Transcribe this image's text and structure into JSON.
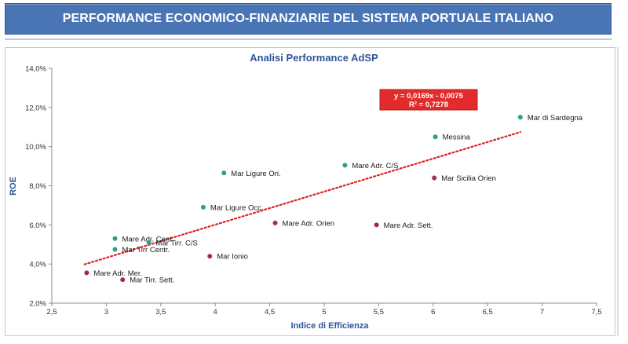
{
  "header": {
    "title": "PERFORMANCE ECONOMICO-FINANZIARIE DEL SISTEMA PORTUALE ITALIANO"
  },
  "chart_data": {
    "type": "scatter",
    "title": "Analisi Performance AdSP",
    "xlabel": "Indice di Efficienza",
    "ylabel": "ROE",
    "xlim": [
      2.5,
      7.5
    ],
    "ylim": [
      2.0,
      14.0
    ],
    "x_ticks": [
      "2,5",
      "3",
      "3,5",
      "4",
      "4,5",
      "5",
      "5,5",
      "6",
      "6,5",
      "7",
      "7,5"
    ],
    "y_ticks": [
      "2,0%",
      "4,0%",
      "6,0%",
      "8,0%",
      "10,0%",
      "12,0%",
      "14,0%"
    ],
    "grid": false,
    "colors": {
      "teal": "#2e9e86",
      "crimson": "#a8284e",
      "trend": "#e02020",
      "label_box": "#e32b2b",
      "title": "#2f5597"
    },
    "trendline": {
      "equation": "y = 0,0169x - 0,0075",
      "r2": "R² = 0,7278",
      "slope": 1.69,
      "intercept": -0.75,
      "x_range": [
        2.8,
        6.8
      ]
    },
    "points": [
      {
        "name": "Mar di Sardegna",
        "x": 6.8,
        "y": 11.5,
        "color": "teal"
      },
      {
        "name": "Messina",
        "x": 6.02,
        "y": 10.5,
        "color": "teal"
      },
      {
        "name": "Mare Adr. C/S",
        "x": 5.19,
        "y": 9.05,
        "color": "teal"
      },
      {
        "name": "Mar Sicilia Orien",
        "x": 6.01,
        "y": 8.4,
        "color": "crimson"
      },
      {
        "name": "Mar Ligure Ori.",
        "x": 4.08,
        "y": 8.65,
        "color": "teal"
      },
      {
        "name": "Mar Ligure Occ.",
        "x": 3.89,
        "y": 6.9,
        "color": "teal"
      },
      {
        "name": "Mare Adr. Orien",
        "x": 4.55,
        "y": 6.1,
        "color": "crimson"
      },
      {
        "name": "Mare Adr. Sett.",
        "x": 5.48,
        "y": 6.0,
        "color": "crimson"
      },
      {
        "name": "Mare Adr. Cent.",
        "x": 3.08,
        "y": 5.3,
        "color": "teal"
      },
      {
        "name": "Mar Tirr. C/S",
        "x": 3.39,
        "y": 5.1,
        "color": "teal"
      },
      {
        "name": "Mar Tirr Centr.",
        "x": 3.08,
        "y": 4.75,
        "color": "teal"
      },
      {
        "name": "Mar Ionio",
        "x": 3.95,
        "y": 4.4,
        "color": "crimson"
      },
      {
        "name": "Mare Adr. Mer.",
        "x": 2.82,
        "y": 3.55,
        "color": "crimson"
      },
      {
        "name": "Mar Tirr. Sett.",
        "x": 3.15,
        "y": 3.2,
        "color": "crimson"
      }
    ]
  }
}
